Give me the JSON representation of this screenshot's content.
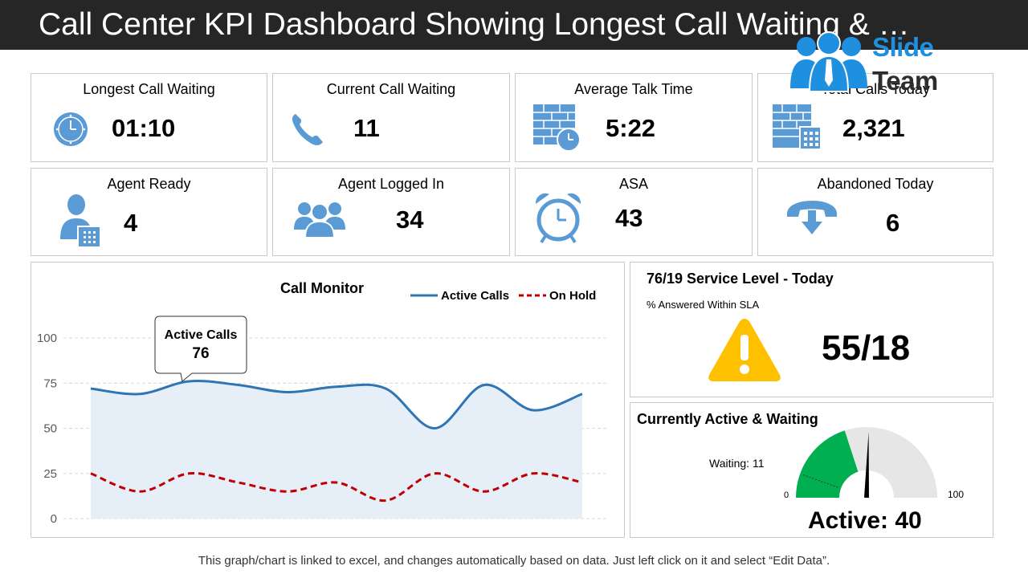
{
  "header": {
    "title": "Call Center KPI Dashboard Showing Longest Call Waiting & …"
  },
  "logo": {
    "line1": "Slide",
    "line2": "Team"
  },
  "kpis": [
    {
      "label": "Longest Call Waiting",
      "value": "01:10",
      "icon": "clock-icon"
    },
    {
      "label": "Current Call Waiting",
      "value": "11",
      "icon": "phone-icon"
    },
    {
      "label": "Average Talk Time",
      "value": "5:22",
      "icon": "brick-wall-clock-icon"
    },
    {
      "label": "Total Calls Today",
      "value": "2,321",
      "icon": "building-phone-icon"
    },
    {
      "label": "Agent Ready",
      "value": "4",
      "icon": "agent-phone-icon"
    },
    {
      "label": "Agent Logged In",
      "value": "34",
      "icon": "group-icon"
    },
    {
      "label": "ASA",
      "value": "43",
      "icon": "alarm-clock-icon"
    },
    {
      "label": "Abandoned Today",
      "value": "6",
      "icon": "hang-up-icon"
    }
  ],
  "colors": {
    "accent": "#5b9bd5",
    "active_line": "#2e75b6",
    "hold_line": "#c00000",
    "area_fill": "#e6eef8",
    "gauge_green": "#00b050",
    "gauge_grey": "#e6e6e6",
    "warning": "#ffc000"
  },
  "chart_data": {
    "type": "line",
    "title": "Call Monitor",
    "ylim": [
      0,
      100
    ],
    "yticks": [
      0,
      25,
      50,
      75,
      100
    ],
    "x": [
      1,
      2,
      3,
      4,
      5,
      6,
      7,
      8,
      9,
      10,
      11
    ],
    "series": [
      {
        "name": "Active Calls",
        "values": [
          72,
          69,
          76,
          74,
          70,
          73,
          72,
          50,
          74,
          60,
          69
        ],
        "style": "solid",
        "filled": true
      },
      {
        "name": "On Hold",
        "values": [
          25,
          15,
          25,
          20,
          15,
          20,
          10,
          25,
          15,
          25,
          20
        ],
        "style": "dashed"
      }
    ],
    "callout": {
      "title": "Active Calls",
      "value": "76"
    },
    "legend_position": "top-right"
  },
  "service_level": {
    "title": "76/19 Service Level - Today",
    "subtitle": "% Answered Within SLA",
    "value": "55/18"
  },
  "gauge": {
    "title": "Currently Active & Waiting",
    "waiting_label": "Waiting: 11",
    "active_label": "Active: 40",
    "min_label": "0",
    "max_label": "100",
    "min": 0,
    "max": 100,
    "active": 40,
    "waiting": 11,
    "needle": 51
  },
  "footer": {
    "text": "This graph/chart is linked to excel, and changes automatically based on data. Just left click on it and select “Edit Data”."
  }
}
